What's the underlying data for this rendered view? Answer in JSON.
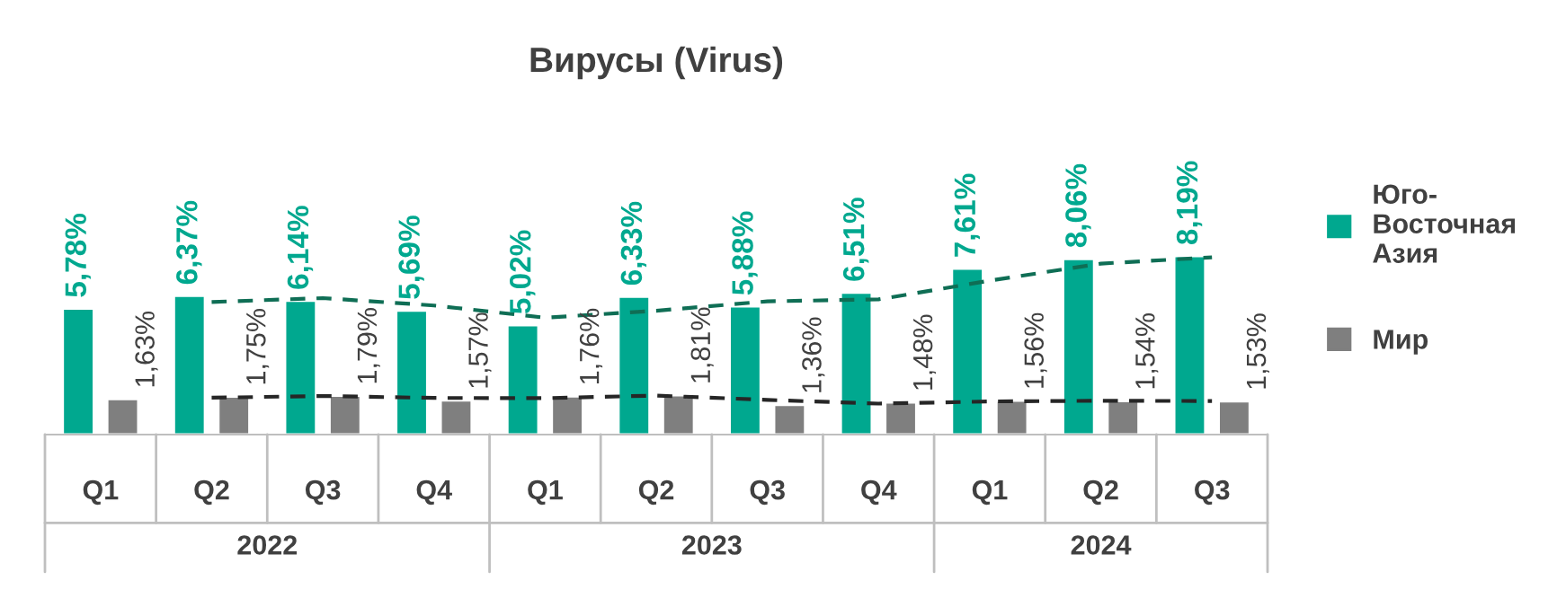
{
  "chart_data": {
    "type": "bar",
    "title": "Вирусы (Virus)",
    "categories": [
      "Q1",
      "Q2",
      "Q3",
      "Q4",
      "Q1",
      "Q2",
      "Q3",
      "Q4",
      "Q1",
      "Q2",
      "Q3"
    ],
    "annotations": [
      "2022",
      "2023",
      "2024"
    ],
    "series": [
      {
        "name": "Юго-Восточная Азия",
        "color": "#00a88f",
        "values": [
          5.78,
          6.37,
          6.14,
          5.69,
          5.02,
          6.33,
          5.88,
          6.51,
          7.61,
          8.06,
          8.19
        ],
        "value_labels": [
          "5,78%",
          "6,37%",
          "6,14%",
          "5,69%",
          "5,02%",
          "6,33%",
          "5,88%",
          "6,51%",
          "7,61%",
          "8,06%",
          "8,19%"
        ]
      },
      {
        "name": "Мир",
        "color": "#7f7f7f",
        "values": [
          1.63,
          1.75,
          1.79,
          1.57,
          1.76,
          1.81,
          1.36,
          1.48,
          1.56,
          1.54,
          1.53
        ],
        "value_labels": [
          "1,63%",
          "1,75%",
          "1,79%",
          "1,57%",
          "1,76%",
          "1,81%",
          "1,36%",
          "1,48%",
          "1,56%",
          "1,54%",
          "1,53%"
        ]
      },
      {
        "type": "line",
        "color": "#0f6e55",
        "line_style": "dashed",
        "values": [
          null,
          6.08,
          6.26,
          5.92,
          5.36,
          5.68,
          6.11,
          6.2,
          7.06,
          7.84,
          8.13
        ]
      },
      {
        "type": "line",
        "color": "#262626",
        "line_style": "dashed",
        "values": [
          null,
          1.69,
          1.77,
          1.68,
          1.67,
          1.79,
          1.59,
          1.42,
          1.52,
          1.55,
          1.54
        ]
      }
    ],
    "legend": "right",
    "grid": false
  }
}
